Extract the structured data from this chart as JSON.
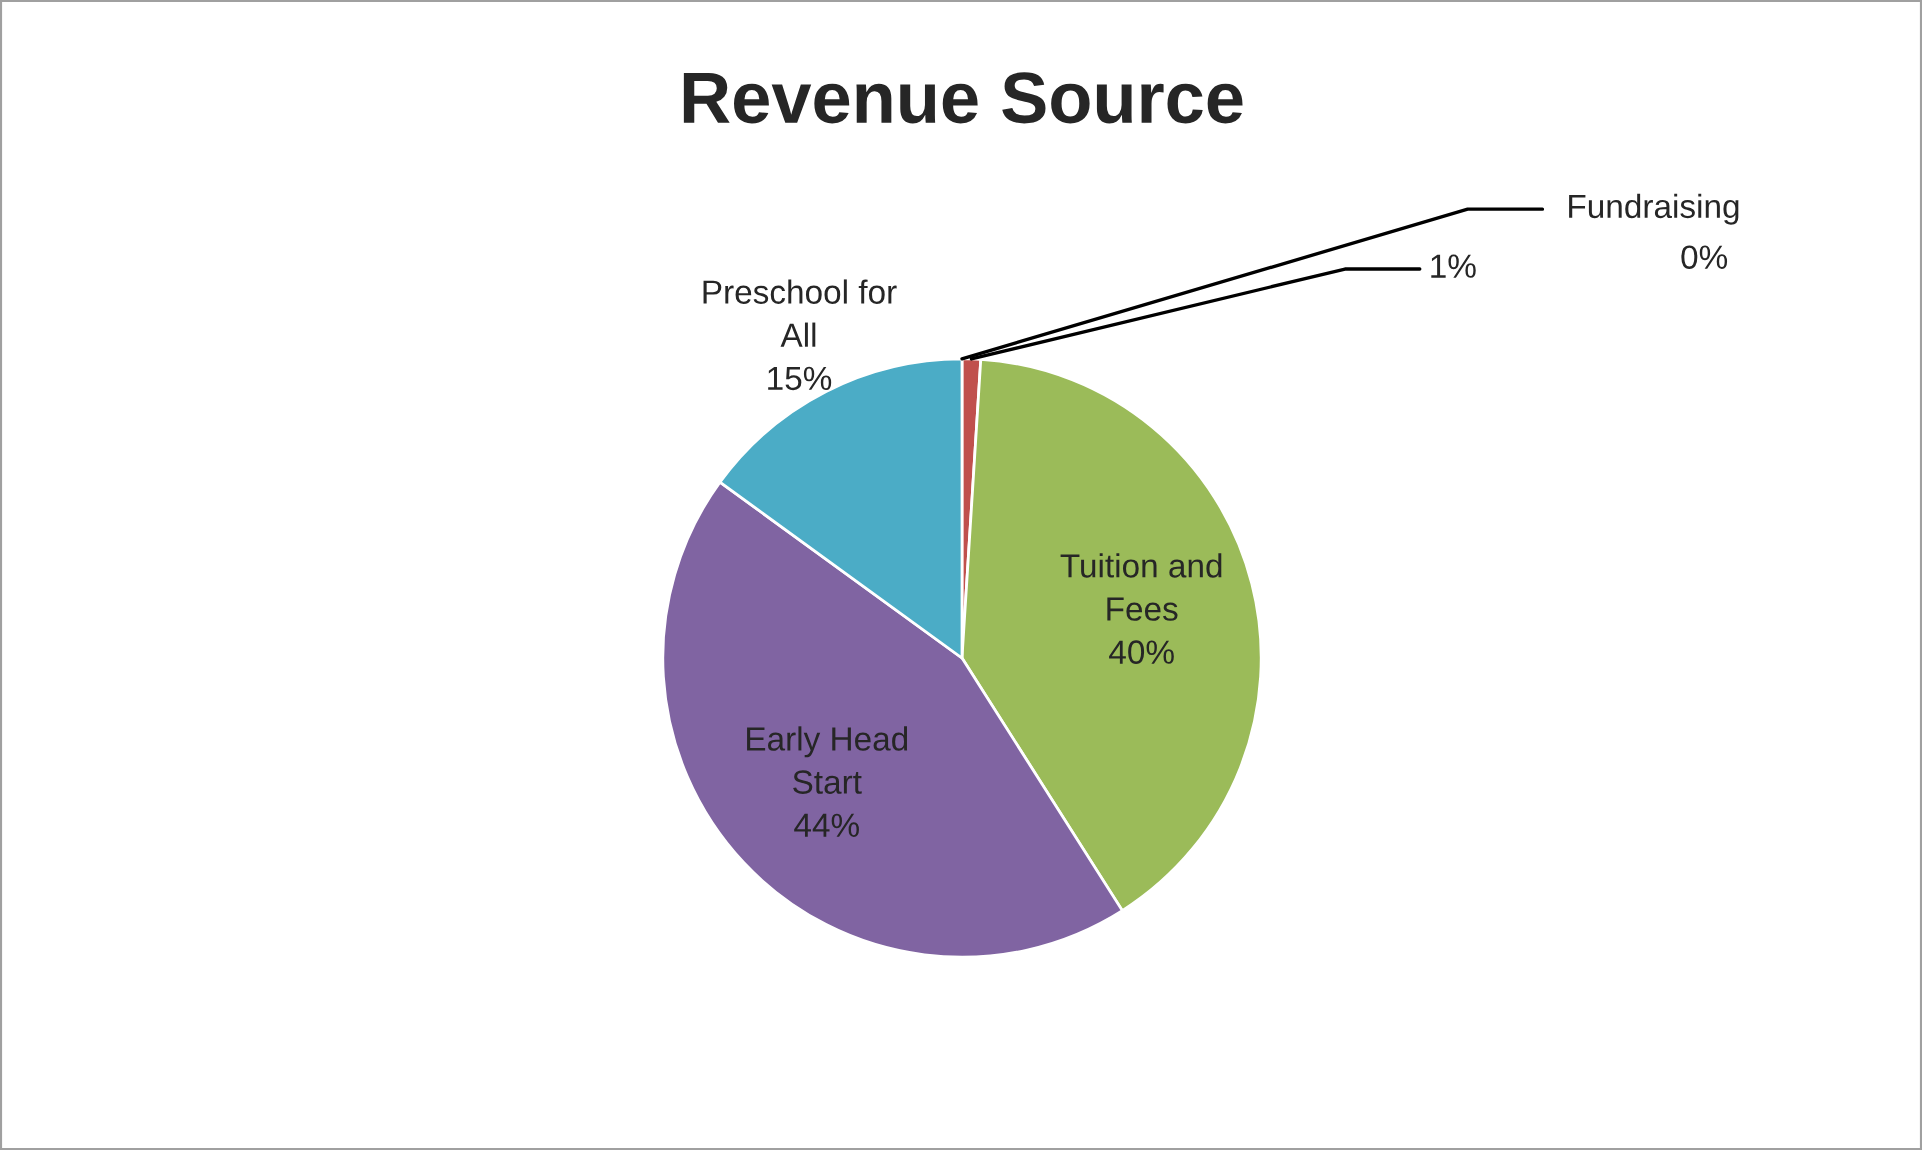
{
  "chart_data": {
    "type": "pie",
    "title": "Revenue Source",
    "categories": [
      "Fundraising",
      null,
      "Tuition and Fees",
      "Early Head Start",
      "Preschool for All"
    ],
    "values": [
      0,
      1,
      40,
      44,
      15
    ],
    "value_labels": [
      "0%",
      "1%",
      "40%",
      "44%",
      "15%"
    ],
    "colors": [
      "#4f81bd",
      "#c0504d",
      "#9bbb59",
      "#8064a2",
      "#4bacc6"
    ],
    "legend": false
  }
}
